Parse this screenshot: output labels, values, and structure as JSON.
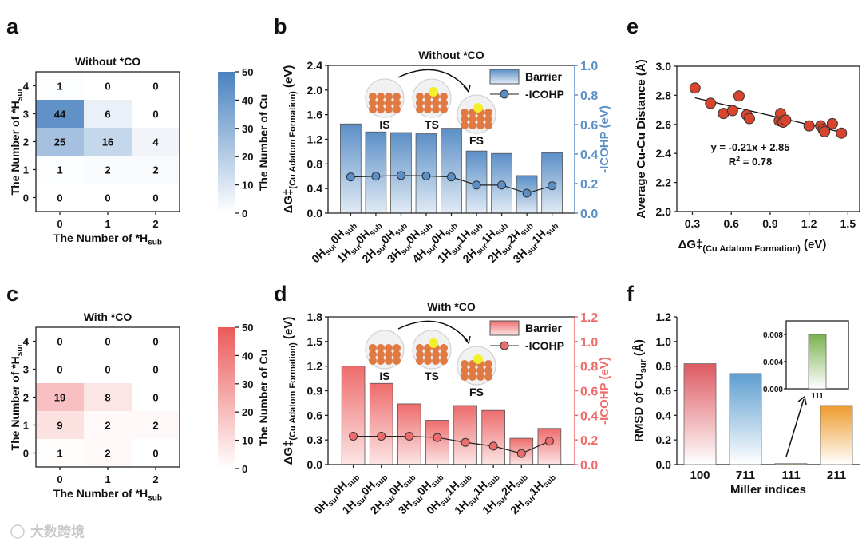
{
  "panel_letters": [
    "a",
    "b",
    "c",
    "d",
    "e",
    "f"
  ],
  "watermark": "大数跨境",
  "chart_data": [
    {
      "id": "a",
      "type": "heatmap",
      "title": "Without *CO",
      "xlabel": [
        "The Number of *H",
        "sub"
      ],
      "ylabel": [
        "The Number of *H",
        "sur"
      ],
      "x_categories": [
        "0",
        "1",
        "2"
      ],
      "y_categories": [
        "4",
        "3",
        "2",
        "1",
        "0"
      ],
      "values": [
        [
          1,
          0,
          0
        ],
        [
          44,
          6,
          0
        ],
        [
          25,
          16,
          4
        ],
        [
          1,
          2,
          2
        ],
        [
          0,
          0,
          0
        ]
      ],
      "colorbar": {
        "label": "The Number of Cu",
        "range": [
          0,
          50
        ],
        "ticks": [
          "0",
          "10",
          "20",
          "30",
          "40",
          "50"
        ],
        "color": "#4a82bf"
      }
    },
    {
      "id": "b",
      "type": "bar",
      "title": "Without *CO",
      "ylabel": "ΔG‡",
      "ylabel_sub": "(Cu Adatom Formation)",
      "ylabel_unit": " (eV)",
      "y2label": "-ICOHP (eV)",
      "ylim": [
        0,
        2.4
      ],
      "yticks": [
        "0.0",
        "0.4",
        "0.8",
        "1.2",
        "1.6",
        "2.0",
        "2.4"
      ],
      "y2lim": [
        0,
        1.0
      ],
      "y2ticks": [
        "0.0",
        "0.2",
        "0.4",
        "0.6",
        "0.8",
        "1.0"
      ],
      "categories": [
        [
          "0H",
          "sur",
          "0H",
          "sub"
        ],
        [
          "1H",
          "sur",
          "0H",
          "sub"
        ],
        [
          "2H",
          "sur",
          "0H",
          "sub"
        ],
        [
          "3H",
          "sur",
          "0H",
          "sub"
        ],
        [
          "4H",
          "sur",
          "0H",
          "sub"
        ],
        [
          "1H",
          "sur",
          "1H",
          "sub"
        ],
        [
          "2H",
          "sur",
          "1H",
          "sub"
        ],
        [
          "2H",
          "sur",
          "2H",
          "sub"
        ],
        [
          "3H",
          "sur",
          "1H",
          "sub"
        ]
      ],
      "series": [
        {
          "name": "Barrier",
          "values": [
            1.45,
            1.32,
            1.31,
            1.29,
            1.38,
            1.01,
            0.97,
            0.61,
            0.98
          ]
        },
        {
          "name": "-ICOHP",
          "axis": "right",
          "values": [
            0.245,
            0.25,
            0.255,
            0.252,
            0.245,
            0.19,
            0.19,
            0.135,
            0.185
          ]
        }
      ],
      "inset_labels": [
        "IS",
        "TS",
        "FS"
      ],
      "color": "#5b8fc7"
    },
    {
      "id": "c",
      "type": "heatmap",
      "title": "With *CO",
      "xlabel": [
        "The Number of *H",
        "sub"
      ],
      "ylabel": [
        "The Number of *H",
        "sur"
      ],
      "x_categories": [
        "0",
        "1",
        "2"
      ],
      "y_categories": [
        "4",
        "3",
        "2",
        "1",
        "0"
      ],
      "values": [
        [
          0,
          0,
          0
        ],
        [
          0,
          0,
          0
        ],
        [
          19,
          8,
          0
        ],
        [
          9,
          2,
          2
        ],
        [
          1,
          2,
          0
        ]
      ],
      "colorbar": {
        "label": "The Number of Cu",
        "range": [
          0,
          50
        ],
        "ticks": [
          "0",
          "10",
          "20",
          "30",
          "40",
          "50"
        ],
        "color": "#ec5a5a"
      }
    },
    {
      "id": "d",
      "type": "bar",
      "title": "With *CO",
      "ylabel": "ΔG‡",
      "ylabel_sub": "(Cu Adatom Formation)",
      "ylabel_unit": " (eV)",
      "y2label": "-ICOHP (eV)",
      "ylim": [
        0,
        1.8
      ],
      "yticks": [
        "0.0",
        "0.3",
        "0.6",
        "0.9",
        "1.2",
        "1.5",
        "1.8"
      ],
      "y2lim": [
        0,
        1.2
      ],
      "y2ticks": [
        "0.0",
        "0.2",
        "0.4",
        "0.6",
        "0.8",
        "1.0",
        "1.2"
      ],
      "categories": [
        [
          "0H",
          "sur",
          "0H",
          "sub"
        ],
        [
          "1H",
          "sur",
          "0H",
          "sub"
        ],
        [
          "2H",
          "sur",
          "0H",
          "sub"
        ],
        [
          "3H",
          "sur",
          "0H",
          "sub"
        ],
        [
          "0H",
          "sur",
          "1H",
          "sub"
        ],
        [
          "1H",
          "sur",
          "1H",
          "sub"
        ],
        [
          "1H",
          "sur",
          "2H",
          "sub"
        ],
        [
          "2H",
          "sur",
          "1H",
          "sub"
        ]
      ],
      "series": [
        {
          "name": "Barrier",
          "values": [
            1.2,
            0.99,
            0.74,
            0.54,
            0.72,
            0.66,
            0.32,
            0.44
          ]
        },
        {
          "name": "-ICOHP",
          "axis": "right",
          "values": [
            0.23,
            0.23,
            0.23,
            0.22,
            0.18,
            0.15,
            0.09,
            0.19
          ]
        }
      ],
      "inset_labels": [
        "IS",
        "TS",
        "FS"
      ],
      "color": "#ee6c6c"
    },
    {
      "id": "e",
      "type": "scatter",
      "xlabel": "ΔG‡",
      "xlabel_sub": "(Cu Adatom Formation)",
      "xlabel_unit": " (eV)",
      "ylabel": "Average Cu-Cu Distance (Å)",
      "xlim": [
        0.18,
        1.59
      ],
      "ylim": [
        2.0,
        3.0
      ],
      "xticks": [
        "0.3",
        "0.6",
        "0.9",
        "1.2",
        "1.5"
      ],
      "yticks": [
        "2.0",
        "2.2",
        "2.4",
        "2.6",
        "2.8",
        "3.0"
      ],
      "points": [
        [
          0.32,
          2.85
        ],
        [
          0.44,
          2.745
        ],
        [
          0.54,
          2.675
        ],
        [
          0.61,
          2.695
        ],
        [
          0.66,
          2.795
        ],
        [
          0.72,
          2.665
        ],
        [
          0.74,
          2.64
        ],
        [
          0.97,
          2.625
        ],
        [
          0.98,
          2.675
        ],
        [
          0.99,
          2.62
        ],
        [
          1.0,
          2.615
        ],
        [
          1.02,
          2.63
        ],
        [
          1.2,
          2.59
        ],
        [
          1.29,
          2.59
        ],
        [
          1.31,
          2.565
        ],
        [
          1.32,
          2.55
        ],
        [
          1.38,
          2.605
        ],
        [
          1.45,
          2.54
        ]
      ],
      "fit": {
        "slope": -0.21,
        "intercept": 2.85,
        "equation": "y = -0.21x + 2.85",
        "r2_label": "R",
        "r2_value": " = 0.78"
      },
      "color": "#d9442f"
    },
    {
      "id": "f",
      "type": "bar",
      "xlabel": "Miller indices",
      "ylabel": "RMSD of Cu",
      "ylabel_sub": "sur",
      "ylabel_unit": " (Å)",
      "ylim": [
        0,
        1.2
      ],
      "yticks": [
        "0.0",
        "0.2",
        "0.4",
        "0.6",
        "0.8",
        "1.0",
        "1.2"
      ],
      "categories": [
        "100",
        "711",
        "111",
        "211"
      ],
      "values": [
        0.82,
        0.74,
        0.008,
        0.48
      ],
      "colors": [
        "#dd5a62",
        "#5e9ed0",
        "#7cb24f",
        "#ee9a2c"
      ],
      "inset": {
        "category": "111",
        "ylim": [
          0,
          0.01
        ],
        "yticks": [
          "0.000",
          "0.004",
          "0.008"
        ],
        "value": 0.008
      }
    }
  ]
}
